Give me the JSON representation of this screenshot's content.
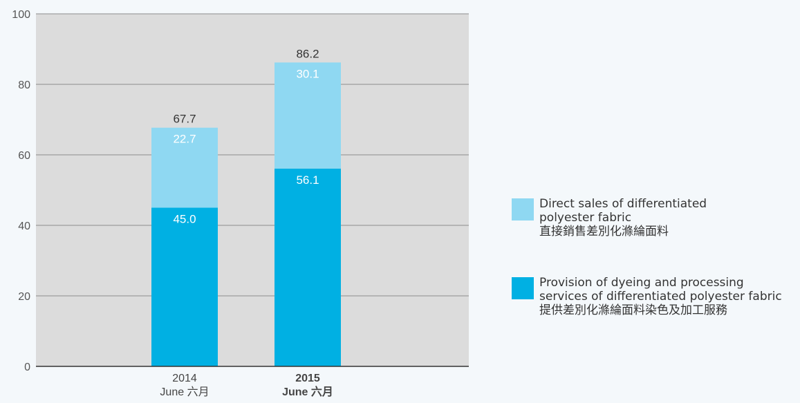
{
  "chart_data": {
    "type": "bar",
    "stacked": true,
    "categories": [
      {
        "year": "2014",
        "month": "June 六月",
        "bold": false
      },
      {
        "year": "2015",
        "month": "June 六月",
        "bold": true
      }
    ],
    "series": [
      {
        "name_en_1": "Provision of dyeing and processing",
        "name_en_2": "services of differentiated polyester fabric",
        "name_zh": "提供差別化滌綸面料染色及加工服務",
        "values": [
          45.0,
          56.1
        ],
        "labels": [
          "45.0",
          "56.1"
        ],
        "color": "#00b0e3"
      },
      {
        "name_en_1": "Direct sales of differentiated",
        "name_en_2": "polyester fabric",
        "name_zh": "直接銷售差別化滌綸面料",
        "values": [
          22.7,
          30.1
        ],
        "labels": [
          "22.7",
          "30.1"
        ],
        "color": "#8fd8f2"
      }
    ],
    "totals": [
      "67.7",
      "86.2"
    ],
    "ylim": [
      0,
      100
    ],
    "yticks": [
      "0",
      "20",
      "40",
      "60",
      "80",
      "100"
    ],
    "grid": true,
    "legend_position": "right",
    "plot_background": "#dcdcdc"
  }
}
